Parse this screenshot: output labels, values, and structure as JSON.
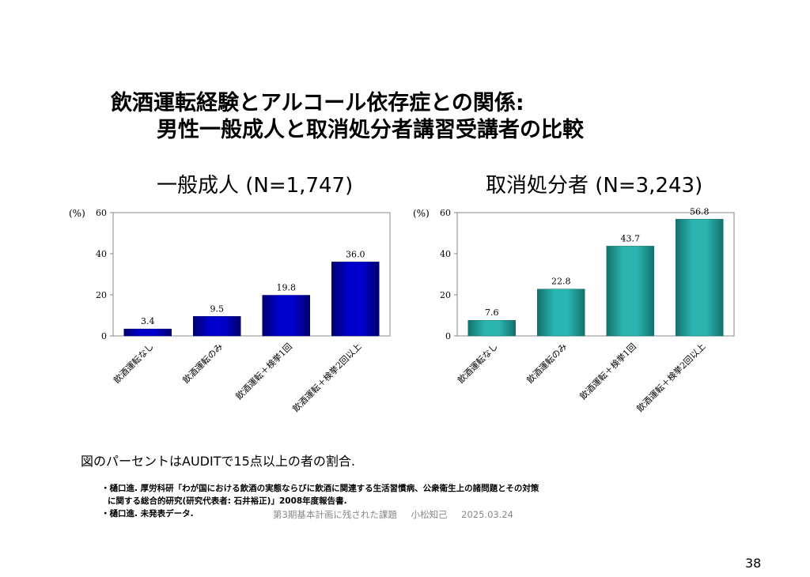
{
  "title_line1": "飲酒運転経験とアルコール依存症との関係:",
  "title_line2": "男性一般成人と取消処分者講習受講者の比較",
  "note": "図のパーセントはAUDITで15点以上の者の割合.",
  "references": {
    "ref1_line1": "・樋口進. 厚労科研「わが国における飲酒の実態ならびに飲酒に関連する生活習慣病、公衆衛生上の諸問題とその対策",
    "ref1_line2": "に関する総合的研究(研究代表者: 石井裕正)」2008年度報告書.",
    "ref2": "・樋口進. 未発表データ."
  },
  "footer": {
    "text": "第3期基本計画に残された課題",
    "author": "小松知己",
    "date": "2025.03.24"
  },
  "page_number": "38",
  "colors": {
    "left_bar": "#0000cc",
    "right_bar": "#2ab5b0"
  },
  "chart_data": [
    {
      "type": "bar",
      "title": "一般成人 (N=1,747)",
      "ylabel": "(%)",
      "ylim": [
        0,
        60
      ],
      "yticks": [
        "0",
        "20",
        "40",
        "60"
      ],
      "categories": [
        "飲酒運転なし",
        "飲酒運転のみ",
        "飲酒運転＋検挙1回",
        "飲酒運転＋検挙2回以上"
      ],
      "values": [
        3.4,
        9.5,
        19.8,
        36.0
      ],
      "labels": [
        "3.4",
        "9.5",
        "19.8",
        "36.0"
      ],
      "grid": false
    },
    {
      "type": "bar",
      "title": "取消処分者 (N=3,243)",
      "ylabel": "(%)",
      "ylim": [
        0,
        60
      ],
      "yticks": [
        "0",
        "20",
        "40",
        "60"
      ],
      "categories": [
        "飲酒運転なし",
        "飲酒運転のみ",
        "飲酒運転＋検挙1回",
        "飲酒運転＋検挙2回以上"
      ],
      "values": [
        7.6,
        22.8,
        43.7,
        56.8
      ],
      "labels": [
        "7.6",
        "22.8",
        "43.7",
        "56.8"
      ],
      "grid": false
    }
  ]
}
